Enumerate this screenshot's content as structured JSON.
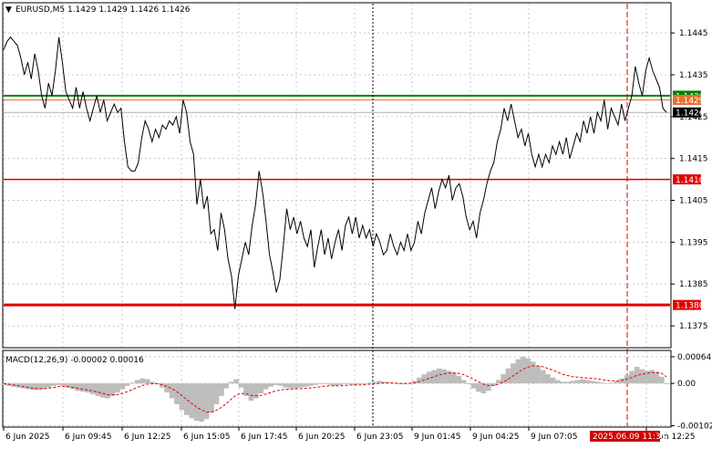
{
  "header": {
    "symbol_line": "EURUSD,M5  1.1429 1.1429 1.1426 1.1426"
  },
  "chart_data": [
    {
      "type": "line",
      "title": "EURUSD,M5  1.1429 1.1429 1.1426 1.1426",
      "ylim": [
        1.137,
        1.1452
      ],
      "y_ticks": [
        "1.1445",
        "1.1435",
        "1.1425",
        "1.1415",
        "1.1405",
        "1.1395",
        "1.1385",
        "1.1375"
      ],
      "x_ticks": [
        "6 Jun 2025",
        "6 Jun 09:45",
        "6 Jun 12:25",
        "6 Jun 15:05",
        "6 Jun 17:45",
        "6 Jun 20:25",
        "6 Jun 23:05",
        "9 Jun 01:45",
        "9 Jun 04:25",
        "9 Jun 07:05",
        "9 Jun 12:25"
      ],
      "cursor_time_label": "2025.06.09 11:35",
      "levels": [
        {
          "value": 1.143,
          "label": "1.1430",
          "color": "#008000"
        },
        {
          "value": 1.1429,
          "label": "1.1429",
          "color": "#e8702a"
        },
        {
          "value": 1.1426,
          "label": "1.1426",
          "color": "#000000"
        },
        {
          "value": 1.141,
          "label": "1.1410",
          "color": "#e00000"
        },
        {
          "value": 1.138,
          "label": "1.1380",
          "color": "#e00000"
        }
      ],
      "series": [
        {
          "values": [
            1.1441,
            1.1443,
            1.1444,
            1.1443,
            1.1442,
            1.1439,
            1.1435,
            1.1438,
            1.1434,
            1.144,
            1.1436,
            1.143,
            1.1427,
            1.1433,
            1.143,
            1.1436,
            1.1444,
            1.1438,
            1.1431,
            1.1429,
            1.1427,
            1.1432,
            1.1427,
            1.1431,
            1.1427,
            1.1424,
            1.1427,
            1.143,
            1.1426,
            1.1429,
            1.1424,
            1.1426,
            1.1428,
            1.1426,
            1.1427,
            1.1419,
            1.1413,
            1.1412,
            1.1412,
            1.1414,
            1.142,
            1.1424,
            1.1422,
            1.1419,
            1.1422,
            1.142,
            1.1423,
            1.1422,
            1.1424,
            1.1423,
            1.1425,
            1.1421,
            1.1429,
            1.1426,
            1.1419,
            1.1416,
            1.1404,
            1.141,
            1.1403,
            1.1406,
            1.1397,
            1.1398,
            1.1393,
            1.1402,
            1.1398,
            1.1391,
            1.1387,
            1.1379,
            1.1387,
            1.1391,
            1.1395,
            1.1392,
            1.1399,
            1.1404,
            1.1412,
            1.1407,
            1.14,
            1.1392,
            1.1388,
            1.1383,
            1.1386,
            1.1394,
            1.1403,
            1.1398,
            1.1401,
            1.1397,
            1.14,
            1.1396,
            1.1394,
            1.1398,
            1.1389,
            1.1394,
            1.1398,
            1.1392,
            1.1396,
            1.1391,
            1.1395,
            1.1398,
            1.1393,
            1.1399,
            1.1401,
            1.1397,
            1.1401,
            1.1396,
            1.1399,
            1.1396,
            1.1398,
            1.1394,
            1.1397,
            1.1395,
            1.1392,
            1.1393,
            1.1397,
            1.1394,
            1.1392,
            1.1395,
            1.1393,
            1.1397,
            1.1393,
            1.1395,
            1.14,
            1.1397,
            1.1402,
            1.1405,
            1.1408,
            1.1403,
            1.1407,
            1.141,
            1.1408,
            1.1411,
            1.1405,
            1.1408,
            1.1409,
            1.1406,
            1.1401,
            1.1398,
            1.14,
            1.1396,
            1.1402,
            1.1405,
            1.1409,
            1.1412,
            1.1414,
            1.1419,
            1.1422,
            1.1427,
            1.1424,
            1.1428,
            1.1424,
            1.142,
            1.1422,
            1.1418,
            1.1421,
            1.1416,
            1.1413,
            1.1416,
            1.1413,
            1.1416,
            1.1414,
            1.1418,
            1.1416,
            1.1419,
            1.1416,
            1.142,
            1.1415,
            1.1418,
            1.1421,
            1.1419,
            1.1424,
            1.1421,
            1.1425,
            1.1421,
            1.1426,
            1.1424,
            1.1429,
            1.1422,
            1.1427,
            1.1425,
            1.1423,
            1.1428,
            1.1424,
            1.1427,
            1.143,
            1.1437,
            1.1433,
            1.143,
            1.1436,
            1.1439,
            1.1436,
            1.1434,
            1.1432,
            1.1427,
            1.1426
          ]
        }
      ]
    },
    {
      "type": "bar",
      "title": "MACD(12,26,9) -0.00002 0.00016",
      "ylim": [
        -0.00103,
        0.00077
      ],
      "y_ticks": [
        "0.00064",
        "0.00",
        "-0.00102"
      ],
      "series": [
        {
          "name": "MACD",
          "values": [
            -4e-05,
            -6e-05,
            -8e-05,
            -0.0001,
            -0.00012,
            -0.00014,
            -0.00016,
            -0.00016,
            -0.00014,
            -0.0001,
            -6e-05,
            -4e-05,
            -6e-05,
            -0.0001,
            -0.00014,
            -0.00018,
            -0.0002,
            -0.00022,
            -0.00026,
            -0.0003,
            -0.00034,
            -0.00036,
            -0.0003,
            -0.00022,
            -0.00014,
            -6e-05,
            2e-05,
            8e-05,
            0.00012,
            0.0001,
            4e-05,
            -2e-05,
            -0.0001,
            -0.00022,
            -0.00036,
            -0.0005,
            -0.00064,
            -0.00076,
            -0.00084,
            -0.0009,
            -0.00092,
            -0.00086,
            -0.0007,
            -0.0005,
            -0.0003,
            -0.00012,
            4e-05,
            0.0001,
            -0.0001,
            -0.0003,
            -0.00042,
            -0.00036,
            -0.00024,
            -0.00014,
            -8e-05,
            -4e-05,
            -6e-05,
            -0.0001,
            -0.00012,
            -0.00012,
            -0.0001,
            -8e-05,
            -6e-05,
            -4e-05,
            -2e-05,
            -2e-05,
            -4e-05,
            -6e-05,
            -4e-05,
            -2e-05,
            -2e-05,
            -4e-05,
            -2e-05,
            0.0,
            2e-05,
            4e-05,
            6e-05,
            4e-05,
            2e-05,
            0.0,
            -2e-05,
            -2e-05,
            0.0,
            6e-05,
            0.00014,
            0.00022,
            0.00028,
            0.00032,
            0.00036,
            0.00034,
            0.0003,
            0.00026,
            0.00018,
            8e-05,
            -2e-05,
            -0.00012,
            -0.0002,
            -0.00024,
            -0.00018,
            -6e-05,
            8e-05,
            0.00022,
            0.00036,
            0.00048,
            0.00058,
            0.00064,
            0.0006,
            0.00052,
            0.00042,
            0.00032,
            0.00022,
            0.00014,
            8e-05,
            4e-05,
            4e-05,
            6e-05,
            8e-05,
            0.0001,
            8e-05,
            6e-05,
            4e-05,
            2e-05,
            0.0,
            2e-05,
            6e-05,
            0.00012,
            0.0002,
            0.0003,
            0.0004,
            0.00034,
            0.0003,
            0.00032,
            0.00028,
            0.00016,
            -2e-05
          ]
        },
        {
          "name": "Signal",
          "values": [
            0.0,
            -2e-05,
            -4e-05,
            -6e-05,
            -8e-05,
            -0.0001,
            -0.00012,
            -0.00013,
            -0.00013,
            -0.00012,
            -0.0001,
            -8e-05,
            -7e-05,
            -8e-05,
            -0.0001,
            -0.00012,
            -0.00014,
            -0.00016,
            -0.00018,
            -0.00021,
            -0.00024,
            -0.00027,
            -0.00028,
            -0.00027,
            -0.00024,
            -0.0002,
            -0.00015,
            -0.0001,
            -5e-05,
            -2e-05,
            -1e-05,
            -1e-05,
            -3e-05,
            -7e-05,
            -0.00013,
            -0.0002,
            -0.00029,
            -0.00039,
            -0.00048,
            -0.00057,
            -0.00064,
            -0.00069,
            -0.00069,
            -0.00065,
            -0.00058,
            -0.00049,
            -0.00038,
            -0.00028,
            -0.00024,
            -0.00025,
            -0.00029,
            -0.0003,
            -0.00029,
            -0.00026,
            -0.00022,
            -0.00018,
            -0.00016,
            -0.00014,
            -0.00014,
            -0.00013,
            -0.00013,
            -0.00012,
            -0.00011,
            -0.0001,
            -8e-05,
            -7e-05,
            -6e-05,
            -6e-05,
            -6e-05,
            -5e-05,
            -4e-05,
            -4e-05,
            -4e-05,
            -3e-05,
            -2e-05,
            -1e-05,
            0.0,
            1e-05,
            1e-05,
            1e-05,
            0.0,
            0.0,
            0.0,
            1e-05,
            4e-05,
            8e-05,
            0.00012,
            0.00016,
            0.0002,
            0.00023,
            0.00025,
            0.00025,
            0.00024,
            0.00021,
            0.00016,
            0.0001,
            4e-05,
            -2e-05,
            -5e-05,
            -5e-05,
            -2e-05,
            3e-05,
            0.0001,
            0.00018,
            0.00026,
            0.00034,
            0.00039,
            0.00042,
            0.00042,
            0.0004,
            0.00036,
            0.00032,
            0.00027,
            0.00022,
            0.00019,
            0.00016,
            0.00015,
            0.00014,
            0.00013,
            0.00012,
            0.00011,
            9e-05,
            7e-05,
            6e-05,
            6e-05,
            7e-05,
            0.0001,
            0.00014,
            0.00019,
            0.00022,
            0.00024,
            0.00026,
            0.00026,
            0.00024,
            0.00016
          ]
        }
      ]
    }
  ]
}
